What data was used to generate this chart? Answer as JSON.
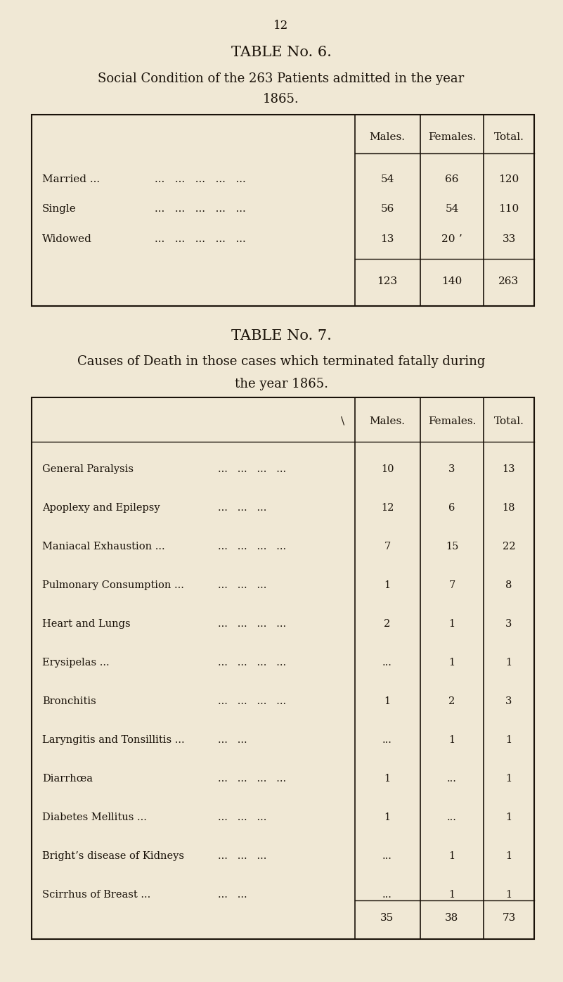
{
  "page_number": "12",
  "bg_color": "#f0e8d5",
  "text_color": "#1a1209",
  "table6_title": "TABLE No. 6.",
  "table6_subtitle1": "Social Condition of the 263 Patients admitted in the year",
  "table6_subtitle2": "1865.",
  "table6_headers": [
    "Males.",
    "Females.",
    "Total."
  ],
  "table6_row_labels": [
    "Married ...",
    "Single",
    "Widowed"
  ],
  "table6_row_dots": [
    "...   ...   ...   ...   ...",
    "...   ...   ...   ...   ...",
    "...   ...   ...   ...   ..."
  ],
  "table6_males": [
    "54",
    "56",
    "13"
  ],
  "table6_females": [
    "66",
    "54",
    "20 ʼ"
  ],
  "table6_vals": [
    "120",
    "110",
    "33"
  ],
  "table6_totals": [
    "123",
    "140",
    "263"
  ],
  "table7_title": "TABLE No. 7.",
  "table7_subtitle1": "Causes of Death in those cases which terminated fatally during",
  "table7_subtitle2": "the year 1865.",
  "table7_headers": [
    "Males.",
    "Females.",
    "Total."
  ],
  "table7_row_labels": [
    "General Paralysis",
    "Apoplexy and Epilepsy",
    "Maniacal Exhaustion ...",
    "Pulmonary Consumption ...",
    "Heart and Lungs",
    "Erysipelas ...",
    "Bronchitis",
    "Laryngitis and Tonsillitis ...",
    "Diarrhœa",
    "Diabetes Mellitus ...",
    "Bright’s disease of Kidneys",
    "Scirrhus of Breast ..."
  ],
  "table7_row_dots": [
    "...   ...   ...   ...",
    "...   ...   ...",
    "...   ...   ...   ...",
    "...   ...   ...",
    "...   ...   ...   ...",
    "...   ...   ...   ...",
    "...   ...   ...   ...",
    "...   ...",
    "...   ...   ...   ...",
    "...   ...   ...",
    "...   ...   ...",
    "...   ..."
  ],
  "table7_males": [
    "10",
    "12",
    "7",
    "1",
    "2",
    "...",
    "1",
    "...",
    "1",
    "1",
    "...",
    "..."
  ],
  "table7_females": [
    "3",
    "6",
    "15",
    "7",
    "1",
    "1",
    "2",
    "1",
    "...",
    "...",
    "1",
    "1"
  ],
  "table7_vals": [
    "13",
    "18",
    "22",
    "8",
    "3",
    "1",
    "3",
    "1",
    "1",
    "1",
    "1",
    "1"
  ],
  "table7_totals": [
    "35",
    "38",
    "73"
  ]
}
